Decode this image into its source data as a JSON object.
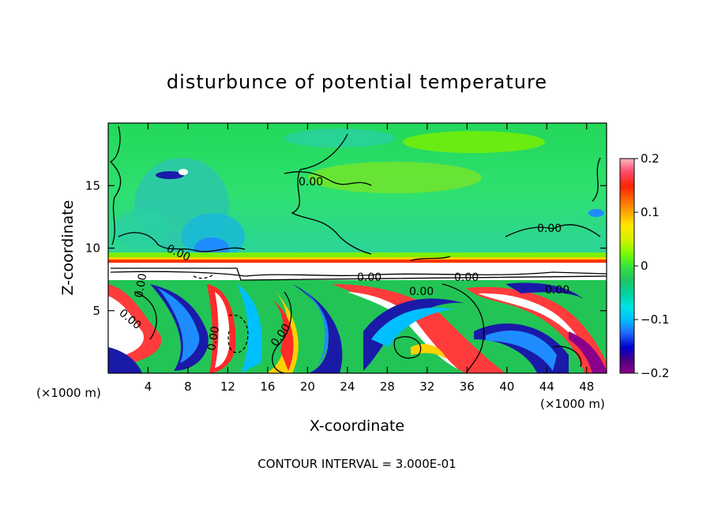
{
  "chart_data": {
    "type": "heatmap",
    "title": "disturbunce of potential temperature",
    "xlabel": "X-coordinate",
    "ylabel": "Z-coordinate",
    "x_unit": "(×1000 m)",
    "xlim": [
      0,
      50
    ],
    "ylim": [
      0,
      20
    ],
    "x_ticks": [
      4,
      8,
      12,
      16,
      20,
      24,
      28,
      32,
      36,
      40,
      44,
      48
    ],
    "y_ticks": [
      5,
      10,
      15
    ],
    "colorbar": {
      "range": [
        -0.2,
        0.2
      ],
      "ticks": [
        0.2,
        0.1,
        0,
        -0.1,
        -0.2
      ],
      "tick_labels": [
        "0.2",
        "0.1",
        "0",
        "−0.1",
        "−0.2"
      ],
      "colors": [
        "#8b008b",
        "#4b0082",
        "#0000cd",
        "#1e6fff",
        "#00bfff",
        "#00e5e5",
        "#00d2a0",
        "#22c55e",
        "#39e63a",
        "#7cfc00",
        "#d4f000",
        "#ffe600",
        "#ffa500",
        "#ff6600",
        "#ff2200",
        "#ff4d6d",
        "#ffb6c1"
      ]
    },
    "contour_labels": [
      "0.00",
      "0.00",
      "0.00",
      "0.00",
      "0.00",
      "0.00",
      "0.00",
      "0.00",
      "0.00",
      "0.00",
      "0.00"
    ],
    "footer": "CONTOUR INTERVAL = 3.000E-01"
  }
}
